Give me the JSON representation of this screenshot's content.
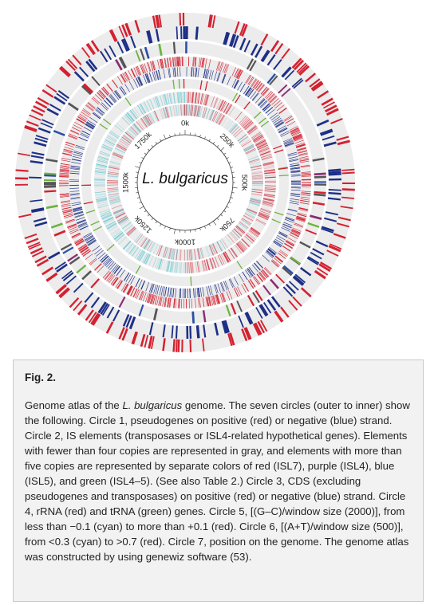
{
  "figure": {
    "center_label": "L. bulgaricus",
    "position_ticks": [
      "0k",
      "250k",
      "500k",
      "750k",
      "1000k",
      "1250k",
      "1500k",
      "1750k"
    ],
    "colors": {
      "positive": "#d42030",
      "negative": "#1d2f86",
      "gray": "#555555",
      "purple": "#8a2b73",
      "blue": "#2a4fa8",
      "green": "#6db33f",
      "cyan": "#5cc6d0",
      "track_bg": "#ececec"
    }
  },
  "caption": {
    "label": "Fig. 2.",
    "part1": "Genome atlas of the ",
    "species": "L. bulgaricus",
    "part2": " genome. The seven circles (outer to inner) show the following. Circle 1, pseudogenes on positive (red) or negative (blue) strand. Circle 2, IS elements (transposases or ISL4-related hypothetical genes). Elements with fewer than four copies are represented in gray, and elements with more than five copies are represented by separate colors of red (ISL7), purple (ISL4), blue (ISL5), and green (ISL4–5). (See also Table 2.) Circle 3, CDS (excluding pseudogenes and transposases) on positive (red) or negative (blue) strand. Circle 4, rRNA (red) and tRNA (green) genes. Circle 5, [(G–C)/window size (2000)], from less than −0.1 (cyan) to more than +0.1 (red). Circle 6, [(A+T)/window size (500)], from <0.3 (cyan) to >0.7 (red). Circle 7, position on the genome. The genome atlas was constructed by using genewiz software (53)."
  }
}
